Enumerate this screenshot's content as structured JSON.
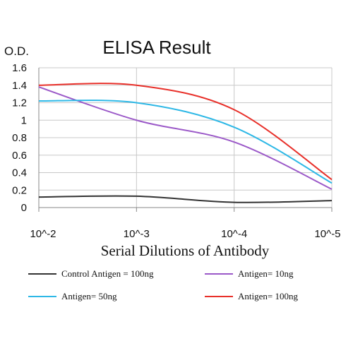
{
  "chart_data": {
    "type": "line",
    "title": "ELISA Result",
    "ylabel": "O.D.",
    "xlabel": "Serial Dilutions of Antibody",
    "categories": [
      "10^-2",
      "10^-3",
      "10^-4",
      "10^-5"
    ],
    "ylim": [
      0,
      1.6
    ],
    "y_ticks": [
      "0",
      "0.2",
      "0.4",
      "0.6",
      "0.8",
      "1",
      "1.2",
      "1.4",
      "1.6"
    ],
    "grid": true,
    "legend_position": "bottom",
    "series": [
      {
        "name": "Control Antigen = 100ng",
        "color": "#333333",
        "values": [
          0.12,
          0.13,
          0.06,
          0.08
        ]
      },
      {
        "name": "Antigen= 10ng",
        "color": "#9b59c8",
        "values": [
          1.38,
          1.0,
          0.75,
          0.21
        ]
      },
      {
        "name": "Antigen= 50ng",
        "color": "#2eb8e6",
        "values": [
          1.22,
          1.2,
          0.92,
          0.28
        ]
      },
      {
        "name": "Antigen= 100ng",
        "color": "#e8302a",
        "values": [
          1.4,
          1.4,
          1.12,
          0.32
        ]
      }
    ]
  }
}
